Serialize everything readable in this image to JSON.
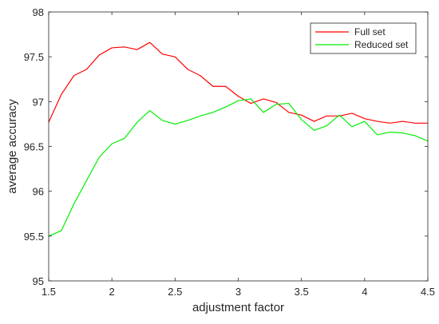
{
  "chart_data": {
    "type": "line",
    "title": "",
    "xlabel": "adjustment factor",
    "ylabel": "average accuracy",
    "xlim": [
      1.5,
      4.5
    ],
    "ylim": [
      95,
      98
    ],
    "xticks": [
      "1.5",
      "2",
      "2.5",
      "3",
      "3.5",
      "4",
      "4.5"
    ],
    "yticks": [
      "95",
      "95.5",
      "96",
      "96.5",
      "97",
      "97.5",
      "98"
    ],
    "grid": false,
    "legend_position": "top-right",
    "x": [
      1.5,
      1.6,
      1.7,
      1.8,
      1.9,
      2.0,
      2.1,
      2.2,
      2.3,
      2.4,
      2.5,
      2.6,
      2.7,
      2.8,
      2.9,
      3.0,
      3.1,
      3.2,
      3.3,
      3.4,
      3.5,
      3.6,
      3.7,
      3.8,
      3.9,
      4.0,
      4.1,
      4.2,
      4.3,
      4.4,
      4.5
    ],
    "series": [
      {
        "name": "Full set",
        "color": "#ff0000",
        "values": [
          96.77,
          97.08,
          97.29,
          97.36,
          97.52,
          97.6,
          97.61,
          97.58,
          97.66,
          97.53,
          97.5,
          97.36,
          97.29,
          97.17,
          97.17,
          97.06,
          96.98,
          97.03,
          96.99,
          96.88,
          96.85,
          96.78,
          96.84,
          96.84,
          96.87,
          96.81,
          96.78,
          96.76,
          96.78,
          96.76,
          96.76
        ]
      },
      {
        "name": "Reduced set",
        "color": "#00ee00",
        "values": [
          95.5,
          95.56,
          95.86,
          96.12,
          96.38,
          96.53,
          96.59,
          96.77,
          96.9,
          96.79,
          96.75,
          96.79,
          96.84,
          96.88,
          96.94,
          97.01,
          97.03,
          96.88,
          96.97,
          96.98,
          96.8,
          96.68,
          96.73,
          96.85,
          96.72,
          96.78,
          96.63,
          96.66,
          96.65,
          96.62,
          96.56
        ]
      }
    ]
  }
}
